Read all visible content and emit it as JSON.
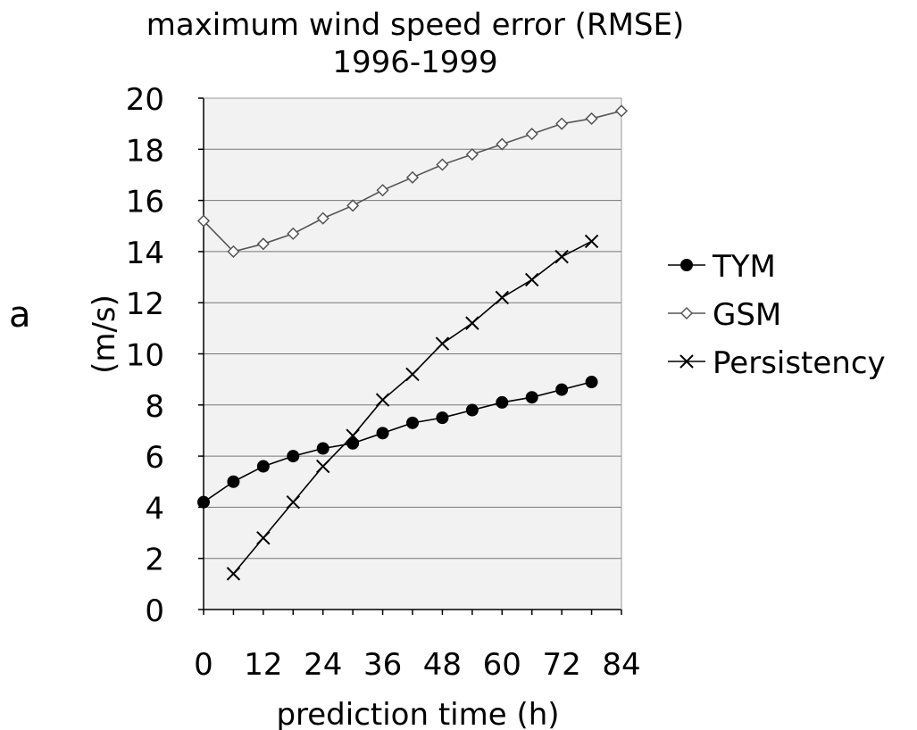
{
  "panel_label": "a",
  "chart_data": {
    "type": "line",
    "title": "maximum wind speed error (RMSE)",
    "subtitle": "1996-1999",
    "xlabel": "prediction time (h)",
    "ylabel": "(m/s)",
    "xlim": [
      0,
      84
    ],
    "ylim": [
      0,
      20
    ],
    "xticks": [
      0,
      12,
      24,
      36,
      48,
      60,
      72,
      84
    ],
    "yticks": [
      0,
      2,
      4,
      6,
      8,
      10,
      12,
      14,
      16,
      18,
      20
    ],
    "grid": "horizontal",
    "legend_position": "right",
    "series": [
      {
        "name": "TYM",
        "marker": "filled-circle",
        "color": "#000000",
        "x": [
          0,
          6,
          12,
          18,
          24,
          30,
          36,
          42,
          48,
          54,
          60,
          66,
          72,
          78
        ],
        "y": [
          4.2,
          5.0,
          5.6,
          6.0,
          6.3,
          6.5,
          6.9,
          7.3,
          7.5,
          7.8,
          8.1,
          8.3,
          8.6,
          8.9
        ]
      },
      {
        "name": "GSM",
        "marker": "open-diamond",
        "color": "#555555",
        "x": [
          0,
          6,
          12,
          18,
          24,
          30,
          36,
          42,
          48,
          54,
          60,
          66,
          72,
          78,
          84
        ],
        "y": [
          15.2,
          14.0,
          14.3,
          14.7,
          15.3,
          15.8,
          16.4,
          16.9,
          17.4,
          17.8,
          18.2,
          18.6,
          19.0,
          19.2,
          19.5
        ]
      },
      {
        "name": "Persistency",
        "marker": "x",
        "color": "#000000",
        "x": [
          6,
          12,
          18,
          24,
          30,
          36,
          42,
          48,
          54,
          60,
          66,
          72,
          78
        ],
        "y": [
          1.4,
          2.8,
          4.2,
          5.6,
          6.8,
          8.2,
          9.2,
          10.4,
          11.2,
          12.2,
          12.9,
          13.8,
          14.4
        ]
      }
    ]
  }
}
